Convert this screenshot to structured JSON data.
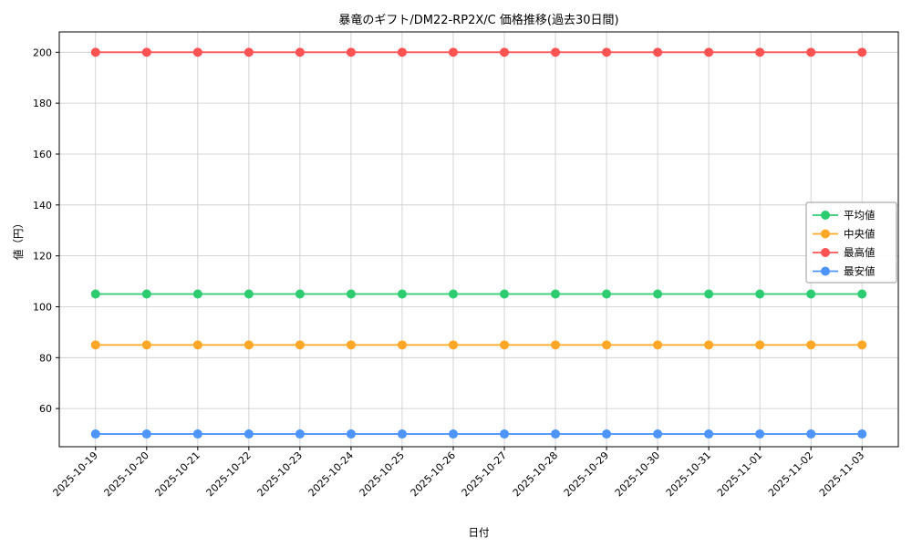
{
  "chart_data": {
    "type": "line",
    "title": "暴竜のギフト/DM22-RP2X/C 価格推移(過去30日間)",
    "xlabel": "日付",
    "ylabel": "値（円）",
    "categories": [
      "2025-10-19",
      "2025-10-20",
      "2025-10-21",
      "2025-10-22",
      "2025-10-23",
      "2025-10-24",
      "2025-10-25",
      "2025-10-26",
      "2025-10-27",
      "2025-10-28",
      "2025-10-29",
      "2025-10-30",
      "2025-10-31",
      "2025-11-01",
      "2025-11-02",
      "2025-11-03"
    ],
    "series": [
      {
        "name": "平均値",
        "color": "#2ecc71",
        "values": [
          105,
          105,
          105,
          105,
          105,
          105,
          105,
          105,
          105,
          105,
          105,
          105,
          105,
          105,
          105,
          105
        ]
      },
      {
        "name": "中央値",
        "color": "#ffa726",
        "values": [
          85,
          85,
          85,
          85,
          85,
          85,
          85,
          85,
          85,
          85,
          85,
          85,
          85,
          85,
          85,
          85
        ]
      },
      {
        "name": "最高値",
        "color": "#ff5252",
        "values": [
          200,
          200,
          200,
          200,
          200,
          200,
          200,
          200,
          200,
          200,
          200,
          200,
          200,
          200,
          200,
          200
        ]
      },
      {
        "name": "最安値",
        "color": "#4d94ff",
        "values": [
          50,
          50,
          50,
          50,
          50,
          50,
          50,
          50,
          50,
          50,
          50,
          50,
          50,
          50,
          50,
          50
        ]
      }
    ],
    "yticks": [
      60,
      80,
      100,
      120,
      140,
      160,
      180,
      200
    ],
    "ylim": [
      45,
      208
    ],
    "x_margin": 0.71,
    "grid": true,
    "grid_color": "#c9c9c9",
    "legend_position": "center-right",
    "background": "#ffffff"
  }
}
